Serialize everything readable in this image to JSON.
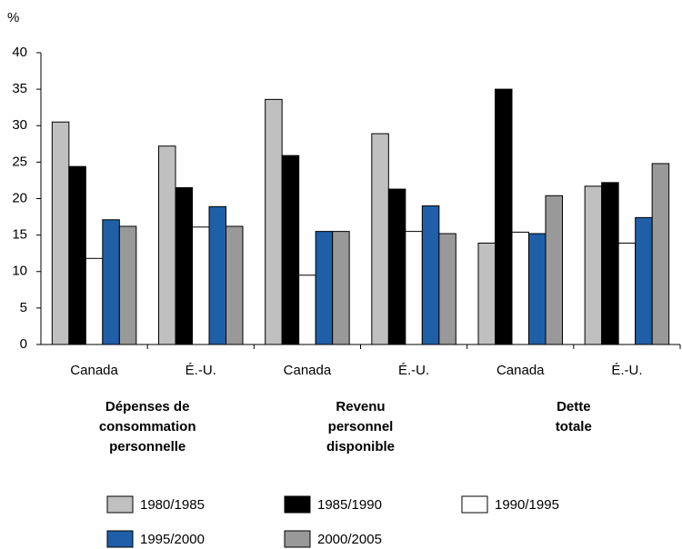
{
  "chart_data": {
    "type": "bar",
    "y_label": "%",
    "categories": [
      "Canada",
      "É.-U.",
      "Canada",
      "É.-U.",
      "Canada",
      "É.-U."
    ],
    "group_labels": [
      [
        "Dépenses de",
        "consommation",
        "personnelle"
      ],
      [
        "Revenu",
        "personnel",
        "disponible"
      ],
      [
        "Dette",
        "totale"
      ]
    ],
    "series": [
      {
        "name": "1980/1985",
        "color": "#c0c0c0",
        "values": [
          30.5,
          27.2,
          33.6,
          28.9,
          13.9,
          21.7
        ]
      },
      {
        "name": "1985/1990",
        "color": "#000000",
        "values": [
          24.4,
          21.5,
          25.9,
          21.3,
          35.0,
          22.2
        ]
      },
      {
        "name": "1990/1995",
        "color": "#ffffff",
        "values": [
          11.8,
          16.1,
          9.5,
          15.5,
          15.4,
          13.9
        ]
      },
      {
        "name": "1995/2000",
        "color": "#1f5fa8",
        "values": [
          17.1,
          18.9,
          15.5,
          19.0,
          15.2,
          17.4
        ]
      },
      {
        "name": "2000/2005",
        "color": "#999999",
        "values": [
          16.2,
          16.2,
          15.5,
          15.2,
          20.4,
          24.8
        ]
      }
    ],
    "ylim": [
      0,
      40
    ],
    "yticks": [
      0,
      5,
      10,
      15,
      20,
      25,
      30,
      35,
      40
    ]
  }
}
